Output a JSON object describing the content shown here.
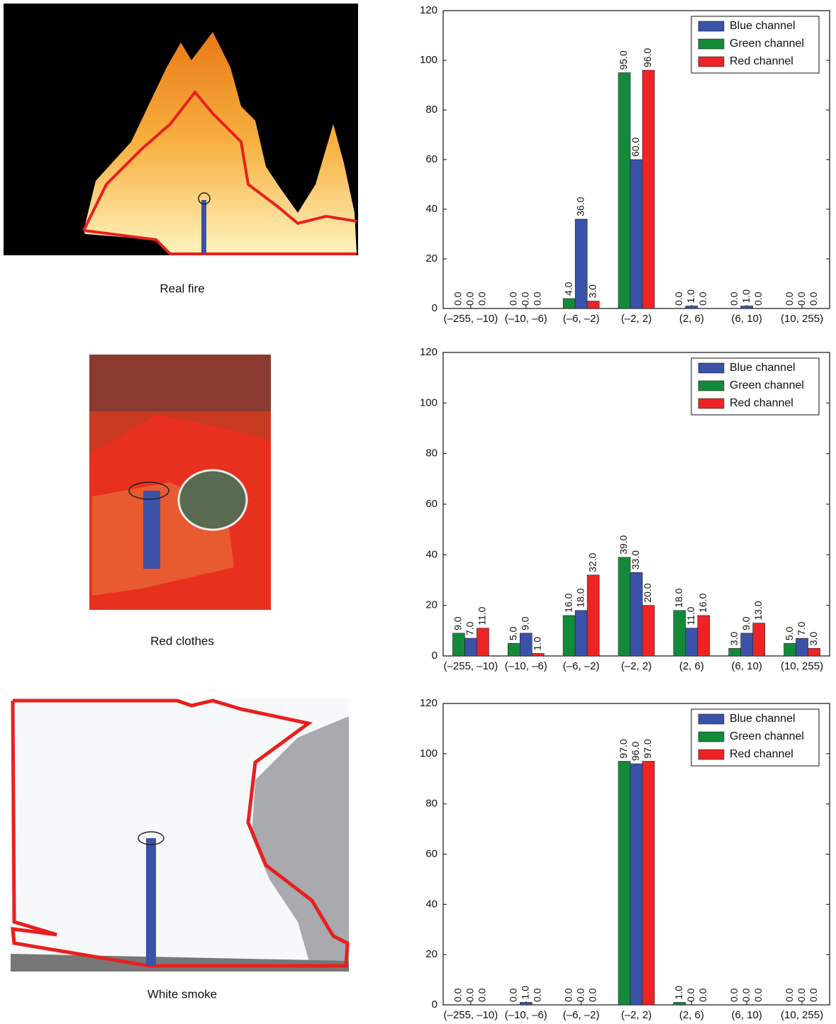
{
  "panels": [
    {
      "caption": "Real fire"
    },
    {
      "caption": "Red clothes"
    },
    {
      "caption": "White smoke"
    }
  ],
  "chart_data": [
    {
      "type": "bar",
      "categories": [
        "(–255, –10)",
        "(–10, –6)",
        "(–6, –2)",
        "(–2, 2)",
        "(2, 6)",
        "(6, 10)",
        "(10, 255)"
      ],
      "ylim": [
        0,
        120
      ],
      "yticks": [
        0,
        20,
        40,
        60,
        80,
        100,
        120
      ],
      "legend": "upper right",
      "series": [
        {
          "name": "Blue channel",
          "color": "#3a52a8",
          "values": [
            0,
            0,
            36,
            60,
            1,
            1,
            0
          ],
          "value_labels": [
            "0.0",
            "0.0",
            "36.0",
            "60.0",
            "1.0",
            "1.0",
            "0.0"
          ]
        },
        {
          "name": "Green channel",
          "color": "#138a3a",
          "values": [
            0,
            0,
            4,
            95,
            0,
            0,
            0
          ],
          "value_labels": [
            "0.0",
            "0.0",
            "4.0",
            "95.0",
            "0.0",
            "0.0",
            "0.0"
          ]
        },
        {
          "name": "Red channel",
          "color": "#ee2424",
          "values": [
            0,
            0,
            3,
            96,
            0,
            0,
            0
          ],
          "value_labels": [
            "0.0",
            "0.0",
            "3.0",
            "96.0",
            "0.0",
            "0.0",
            "0.0"
          ]
        }
      ]
    },
    {
      "type": "bar",
      "categories": [
        "(–255, –10)",
        "(–10, –6)",
        "(–6, –2)",
        "(–2, 2)",
        "(2, 6)",
        "(6, 10)",
        "(10, 255)"
      ],
      "ylim": [
        0,
        120
      ],
      "yticks": [
        0,
        20,
        40,
        60,
        80,
        100,
        120
      ],
      "legend": "upper right",
      "series": [
        {
          "name": "Blue channel",
          "color": "#3a52a8",
          "values": [
            7,
            9,
            18,
            33,
            11,
            9,
            7
          ],
          "value_labels": [
            "7.0",
            "9.0",
            "18.0",
            "33.0",
            "11.0",
            "9.0",
            "7.0"
          ]
        },
        {
          "name": "Green channel",
          "color": "#138a3a",
          "values": [
            9,
            5,
            16,
            39,
            18,
            3,
            5
          ],
          "value_labels": [
            "9.0",
            "5.0",
            "16.0",
            "39.0",
            "18.0",
            "3.0",
            "5.0"
          ]
        },
        {
          "name": "Red channel",
          "color": "#ee2424",
          "values": [
            11,
            1,
            32,
            20,
            16,
            13,
            3
          ],
          "value_labels": [
            "11.0",
            "1.0",
            "32.0",
            "20.0",
            "16.0",
            "13.0",
            "3.0"
          ]
        }
      ]
    },
    {
      "type": "bar",
      "categories": [
        "(–255, –10)",
        "(–10, –6)",
        "(–6, –2)",
        "(–2, 2)",
        "(2, 6)",
        "(6, 10)",
        "(10, 255)"
      ],
      "ylim": [
        0,
        120
      ],
      "yticks": [
        0,
        20,
        40,
        60,
        80,
        100,
        120
      ],
      "legend": "upper right",
      "series": [
        {
          "name": "Blue channel",
          "color": "#3a52a8",
          "values": [
            0,
            1,
            0,
            96,
            0,
            0,
            0
          ],
          "value_labels": [
            "0.0",
            "1.0",
            "0.0",
            "96.0",
            "0.0",
            "0.0",
            "0.0"
          ]
        },
        {
          "name": "Green channel",
          "color": "#138a3a",
          "values": [
            0,
            0,
            0,
            97,
            1,
            0,
            0
          ],
          "value_labels": [
            "0.0",
            "0.0",
            "0.0",
            "97.0",
            "1.0",
            "0.0",
            "0.0"
          ]
        },
        {
          "name": "Red channel",
          "color": "#ee2424",
          "values": [
            0,
            0,
            0,
            97,
            0,
            0,
            0
          ],
          "value_labels": [
            "0.0",
            "0.0",
            "0.0",
            "97.0",
            "0.0",
            "0.0",
            "0.0"
          ]
        }
      ]
    }
  ]
}
